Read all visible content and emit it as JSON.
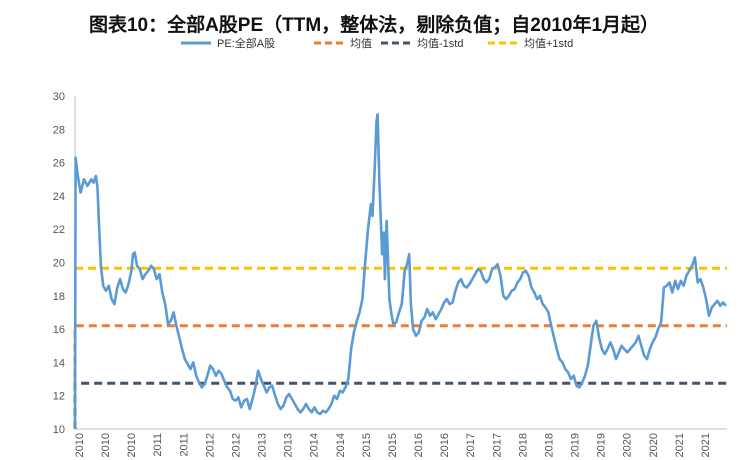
{
  "chart_data": {
    "type": "line",
    "title": "图表10：全部A股PE（TTM，整体法，剔除负值；自2010年1月起）",
    "xlabel": "",
    "ylabel": "",
    "ylim": [
      10,
      30
    ],
    "yticks": [
      "10",
      "12",
      "14",
      "16",
      "18",
      "20",
      "22",
      "24",
      "26",
      "28",
      "30"
    ],
    "xticks": [
      "2010",
      "2010",
      "2010",
      "2011",
      "2011",
      "2012",
      "2012",
      "2013",
      "2013",
      "2014",
      "2014",
      "2015",
      "2015",
      "2016",
      "2016",
      "2017",
      "2017",
      "2018",
      "2018",
      "2019",
      "2019",
      "2020",
      "2020",
      "2021",
      "2021"
    ],
    "grid": false,
    "legend_position": "top",
    "series": [
      {
        "name": "PE:全部A股",
        "color": "#5b9bd5",
        "style": "solid",
        "points": [
          [
            2010.0,
            10.0
          ],
          [
            2010.01,
            26.3
          ],
          [
            2010.05,
            25.2
          ],
          [
            2010.1,
            24.2
          ],
          [
            2010.16,
            25.0
          ],
          [
            2010.22,
            24.6
          ],
          [
            2010.29,
            25.0
          ],
          [
            2010.33,
            24.8
          ],
          [
            2010.37,
            25.2
          ],
          [
            2010.4,
            24.5
          ],
          [
            2010.43,
            22.0
          ],
          [
            2010.46,
            19.8
          ],
          [
            2010.5,
            18.6
          ],
          [
            2010.55,
            18.3
          ],
          [
            2010.6,
            18.6
          ],
          [
            2010.65,
            17.8
          ],
          [
            2010.7,
            17.5
          ],
          [
            2010.75,
            18.5
          ],
          [
            2010.8,
            19.0
          ],
          [
            2010.85,
            18.4
          ],
          [
            2010.9,
            18.2
          ],
          [
            2010.95,
            18.7
          ],
          [
            2011.0,
            19.5
          ],
          [
            2011.03,
            20.5
          ],
          [
            2011.06,
            20.6
          ],
          [
            2011.1,
            19.8
          ],
          [
            2011.15,
            19.6
          ],
          [
            2011.2,
            19.0
          ],
          [
            2011.25,
            19.3
          ],
          [
            2011.3,
            19.5
          ],
          [
            2011.35,
            19.8
          ],
          [
            2011.4,
            19.6
          ],
          [
            2011.45,
            19.0
          ],
          [
            2011.5,
            19.3
          ],
          [
            2011.55,
            18.2
          ],
          [
            2011.6,
            17.5
          ],
          [
            2011.65,
            16.3
          ],
          [
            2011.7,
            16.5
          ],
          [
            2011.75,
            17.0
          ],
          [
            2011.8,
            16.2
          ],
          [
            2011.85,
            15.5
          ],
          [
            2011.9,
            14.8
          ],
          [
            2011.95,
            14.2
          ],
          [
            2012.0,
            13.9
          ],
          [
            2012.05,
            13.6
          ],
          [
            2012.1,
            14.0
          ],
          [
            2012.15,
            13.2
          ],
          [
            2012.2,
            12.8
          ],
          [
            2012.25,
            12.5
          ],
          [
            2012.3,
            12.7
          ],
          [
            2012.35,
            13.2
          ],
          [
            2012.4,
            13.8
          ],
          [
            2012.45,
            13.6
          ],
          [
            2012.5,
            13.2
          ],
          [
            2012.55,
            13.5
          ],
          [
            2012.6,
            13.3
          ],
          [
            2012.65,
            12.9
          ],
          [
            2012.7,
            12.5
          ],
          [
            2012.75,
            12.3
          ],
          [
            2012.8,
            11.8
          ],
          [
            2012.85,
            11.7
          ],
          [
            2012.9,
            11.9
          ],
          [
            2012.95,
            11.3
          ],
          [
            2013.0,
            11.7
          ],
          [
            2013.05,
            11.8
          ],
          [
            2013.1,
            11.2
          ],
          [
            2013.15,
            11.8
          ],
          [
            2013.2,
            12.5
          ],
          [
            2013.25,
            13.5
          ],
          [
            2013.3,
            13.0
          ],
          [
            2013.35,
            12.6
          ],
          [
            2013.4,
            12.2
          ],
          [
            2013.45,
            12.5
          ],
          [
            2013.5,
            12.6
          ],
          [
            2013.55,
            12.0
          ],
          [
            2013.6,
            11.5
          ],
          [
            2013.65,
            11.2
          ],
          [
            2013.7,
            11.4
          ],
          [
            2013.75,
            11.9
          ],
          [
            2013.8,
            12.1
          ],
          [
            2013.85,
            11.8
          ],
          [
            2013.9,
            11.5
          ],
          [
            2013.95,
            11.2
          ],
          [
            2014.0,
            11.0
          ],
          [
            2014.05,
            11.2
          ],
          [
            2014.1,
            11.5
          ],
          [
            2014.15,
            11.2
          ],
          [
            2014.2,
            11.0
          ],
          [
            2014.25,
            11.3
          ],
          [
            2014.3,
            11.0
          ],
          [
            2014.35,
            10.9
          ],
          [
            2014.4,
            11.1
          ],
          [
            2014.45,
            11.0
          ],
          [
            2014.5,
            11.2
          ],
          [
            2014.55,
            11.5
          ],
          [
            2014.6,
            12.0
          ],
          [
            2014.65,
            11.8
          ],
          [
            2014.7,
            12.3
          ],
          [
            2014.75,
            12.2
          ],
          [
            2014.8,
            12.5
          ],
          [
            2014.85,
            13.0
          ],
          [
            2014.9,
            14.8
          ],
          [
            2014.95,
            15.8
          ],
          [
            2015.0,
            16.5
          ],
          [
            2015.05,
            17.0
          ],
          [
            2015.1,
            17.8
          ],
          [
            2015.15,
            20.0
          ],
          [
            2015.2,
            22.0
          ],
          [
            2015.25,
            23.5
          ],
          [
            2015.28,
            22.8
          ],
          [
            2015.32,
            25.8
          ],
          [
            2015.35,
            28.5
          ],
          [
            2015.37,
            28.9
          ],
          [
            2015.4,
            25.0
          ],
          [
            2015.45,
            20.5
          ],
          [
            2015.48,
            21.8
          ],
          [
            2015.5,
            19.0
          ],
          [
            2015.53,
            22.5
          ],
          [
            2015.58,
            17.8
          ],
          [
            2015.62,
            16.8
          ],
          [
            2015.65,
            16.3
          ],
          [
            2015.7,
            16.4
          ],
          [
            2015.75,
            17.0
          ],
          [
            2015.8,
            17.5
          ],
          [
            2015.85,
            19.5
          ],
          [
            2015.9,
            20.0
          ],
          [
            2015.93,
            20.5
          ],
          [
            2015.96,
            17.5
          ],
          [
            2016.0,
            16.0
          ],
          [
            2016.05,
            15.6
          ],
          [
            2016.1,
            15.8
          ],
          [
            2016.15,
            16.5
          ],
          [
            2016.2,
            16.7
          ],
          [
            2016.25,
            17.2
          ],
          [
            2016.3,
            16.8
          ],
          [
            2016.35,
            17.0
          ],
          [
            2016.4,
            16.6
          ],
          [
            2016.45,
            16.9
          ],
          [
            2016.5,
            17.2
          ],
          [
            2016.55,
            17.6
          ],
          [
            2016.6,
            17.8
          ],
          [
            2016.65,
            17.5
          ],
          [
            2016.7,
            17.6
          ],
          [
            2016.75,
            18.3
          ],
          [
            2016.8,
            18.8
          ],
          [
            2016.85,
            19.0
          ],
          [
            2016.9,
            18.6
          ],
          [
            2016.95,
            18.5
          ],
          [
            2017.0,
            18.7
          ],
          [
            2017.05,
            19.0
          ],
          [
            2017.1,
            19.3
          ],
          [
            2017.15,
            19.6
          ],
          [
            2017.2,
            19.5
          ],
          [
            2017.25,
            19.0
          ],
          [
            2017.3,
            18.8
          ],
          [
            2017.35,
            19.0
          ],
          [
            2017.4,
            19.6
          ],
          [
            2017.45,
            19.7
          ],
          [
            2017.5,
            19.9
          ],
          [
            2017.55,
            19.2
          ],
          [
            2017.6,
            18.0
          ],
          [
            2017.65,
            17.8
          ],
          [
            2017.7,
            18.0
          ],
          [
            2017.75,
            18.3
          ],
          [
            2017.8,
            18.4
          ],
          [
            2017.85,
            18.8
          ],
          [
            2017.9,
            19.0
          ],
          [
            2017.95,
            19.4
          ],
          [
            2018.0,
            19.5
          ],
          [
            2018.05,
            19.2
          ],
          [
            2018.1,
            18.5
          ],
          [
            2018.15,
            18.2
          ],
          [
            2018.2,
            17.8
          ],
          [
            2018.25,
            18.0
          ],
          [
            2018.3,
            17.5
          ],
          [
            2018.35,
            17.3
          ],
          [
            2018.4,
            17.0
          ],
          [
            2018.45,
            16.2
          ],
          [
            2018.5,
            15.5
          ],
          [
            2018.55,
            14.8
          ],
          [
            2018.6,
            14.2
          ],
          [
            2018.65,
            14.0
          ],
          [
            2018.7,
            13.6
          ],
          [
            2018.75,
            13.4
          ],
          [
            2018.8,
            13.0
          ],
          [
            2018.85,
            13.2
          ],
          [
            2018.9,
            12.6
          ],
          [
            2018.95,
            12.5
          ],
          [
            2019.0,
            12.8
          ],
          [
            2019.05,
            13.2
          ],
          [
            2019.1,
            13.8
          ],
          [
            2019.15,
            15.0
          ],
          [
            2019.2,
            16.2
          ],
          [
            2019.25,
            16.5
          ],
          [
            2019.3,
            15.5
          ],
          [
            2019.35,
            14.8
          ],
          [
            2019.4,
            14.5
          ],
          [
            2019.45,
            14.8
          ],
          [
            2019.5,
            15.2
          ],
          [
            2019.55,
            14.8
          ],
          [
            2019.6,
            14.2
          ],
          [
            2019.65,
            14.6
          ],
          [
            2019.7,
            15.0
          ],
          [
            2019.75,
            14.8
          ],
          [
            2019.8,
            14.6
          ],
          [
            2019.85,
            14.8
          ],
          [
            2019.9,
            15.0
          ],
          [
            2019.95,
            15.2
          ],
          [
            2020.0,
            15.6
          ],
          [
            2020.05,
            15.0
          ],
          [
            2020.1,
            14.4
          ],
          [
            2020.15,
            14.2
          ],
          [
            2020.2,
            14.8
          ],
          [
            2020.25,
            15.2
          ],
          [
            2020.3,
            15.5
          ],
          [
            2020.35,
            16.0
          ],
          [
            2020.4,
            16.4
          ],
          [
            2020.45,
            18.5
          ],
          [
            2020.5,
            18.6
          ],
          [
            2020.55,
            18.8
          ],
          [
            2020.6,
            18.2
          ],
          [
            2020.65,
            18.9
          ],
          [
            2020.7,
            18.4
          ],
          [
            2020.75,
            18.9
          ],
          [
            2020.8,
            18.6
          ],
          [
            2020.85,
            19.2
          ],
          [
            2020.9,
            19.5
          ],
          [
            2020.95,
            19.8
          ],
          [
            2021.0,
            20.3
          ],
          [
            2021.05,
            18.8
          ],
          [
            2021.1,
            19.0
          ],
          [
            2021.15,
            18.5
          ],
          [
            2021.2,
            17.8
          ],
          [
            2021.25,
            16.8
          ],
          [
            2021.3,
            17.3
          ],
          [
            2021.35,
            17.5
          ],
          [
            2021.4,
            17.7
          ],
          [
            2021.45,
            17.4
          ],
          [
            2021.5,
            17.6
          ],
          [
            2021.55,
            17.4
          ]
        ]
      },
      {
        "name": "均值",
        "color": "#ed7d31",
        "style": "dashed",
        "points": [
          [
            2010.0,
            10.0
          ],
          [
            2010.0,
            16.2
          ],
          [
            2021.57,
            16.2
          ]
        ]
      },
      {
        "name": "均值-1std",
        "color": "#44546a",
        "style": "dashed",
        "points": [
          [
            2010.0,
            10.0
          ],
          [
            2010.0,
            12.75
          ],
          [
            2021.57,
            12.75
          ]
        ]
      },
      {
        "name": "均值+1std",
        "color": "#ffc000",
        "style": "dashed",
        "points": [
          [
            2010.0,
            19.65
          ],
          [
            2021.57,
            19.65
          ]
        ]
      }
    ]
  }
}
